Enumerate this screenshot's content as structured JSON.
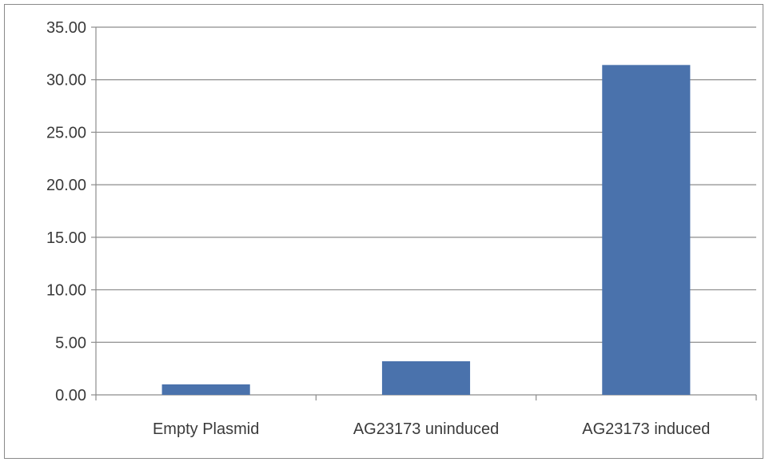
{
  "chart_data": {
    "type": "bar",
    "categories": [
      "Empty Plasmid",
      "AG23173 uninduced",
      "AG23173 induced"
    ],
    "values": [
      1.0,
      3.2,
      31.4
    ],
    "ylim": [
      0,
      35
    ],
    "yticks": [
      "0.00",
      "5.00",
      "10.00",
      "15.00",
      "20.00",
      "25.00",
      "30.00",
      "35.00"
    ],
    "grid": true,
    "bar_color": "#4a72ac",
    "grid_color": "#8c8c8c"
  }
}
